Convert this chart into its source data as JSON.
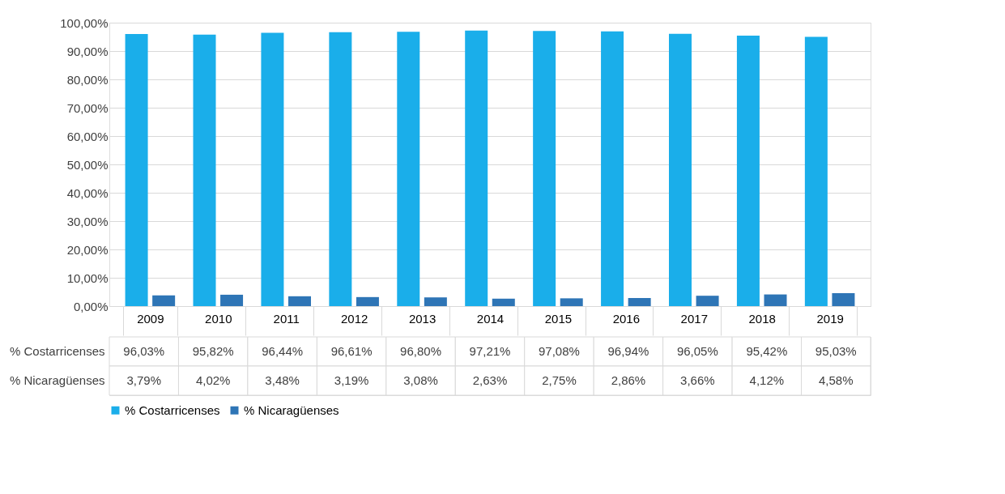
{
  "chart_data": {
    "type": "bar",
    "categories": [
      "2009",
      "2010",
      "2011",
      "2012",
      "2013",
      "2014",
      "2015",
      "2016",
      "2017",
      "2018",
      "2019"
    ],
    "series": [
      {
        "name": "% Costarricenses",
        "color": "#1aaeea",
        "values": [
          96.03,
          95.82,
          96.44,
          96.61,
          96.8,
          97.21,
          97.08,
          96.94,
          96.05,
          95.42,
          95.03
        ],
        "value_labels": [
          "96,03%",
          "95,82%",
          "96,44%",
          "96,61%",
          "96,80%",
          "97,21%",
          "97,08%",
          "96,94%",
          "96,05%",
          "95,42%",
          "95,03%"
        ]
      },
      {
        "name": "% Nicaragüenses",
        "color": "#2e75b6",
        "values": [
          3.79,
          4.02,
          3.48,
          3.19,
          3.08,
          2.63,
          2.75,
          2.86,
          3.66,
          4.12,
          4.58
        ],
        "value_labels": [
          "3,79%",
          "4,02%",
          "3,48%",
          "3,19%",
          "3,08%",
          "2,63%",
          "2,75%",
          "2,86%",
          "3,66%",
          "4,12%",
          "4,58%"
        ]
      }
    ],
    "ylim": [
      0,
      100
    ],
    "yticks": [
      {
        "value": 0,
        "label": "0,00%"
      },
      {
        "value": 10,
        "label": "10,00%"
      },
      {
        "value": 20,
        "label": "20,00%"
      },
      {
        "value": 30,
        "label": "30,00%"
      },
      {
        "value": 40,
        "label": "40,00%"
      },
      {
        "value": 50,
        "label": "50,00%"
      },
      {
        "value": 60,
        "label": "60,00%"
      },
      {
        "value": 70,
        "label": "70,00%"
      },
      {
        "value": 80,
        "label": "80,00%"
      },
      {
        "value": 90,
        "label": "90,00%"
      },
      {
        "value": 100,
        "label": "100,00%"
      }
    ],
    "grid": "y",
    "legend": "bottom"
  }
}
